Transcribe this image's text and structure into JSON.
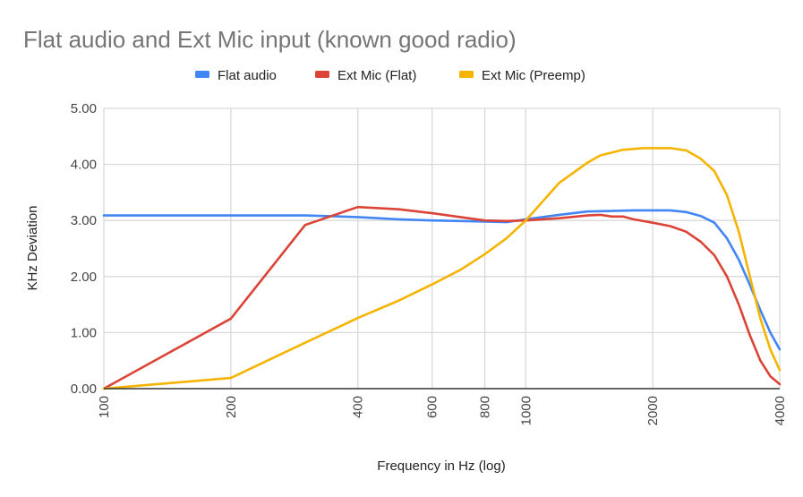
{
  "chart_data": {
    "type": "line",
    "title": "Flat audio and Ext Mic input (known good radio)",
    "xlabel": "Frequency in Hz (log)",
    "ylabel": "KHz Deviation",
    "xscale": "log",
    "xlim": [
      100,
      4000
    ],
    "ylim": [
      0,
      5
    ],
    "x_ticks": [
      100,
      200,
      400,
      600,
      800,
      1000,
      2000,
      4000
    ],
    "x_tick_labels": [
      "100",
      "200",
      "400",
      "600",
      "800",
      "1000",
      "2000",
      "4000"
    ],
    "y_ticks": [
      0,
      1,
      2,
      3,
      4,
      5
    ],
    "y_tick_labels": [
      "0.00",
      "1.00",
      "2.00",
      "3.00",
      "4.00",
      "5.00"
    ],
    "grid": true,
    "legend_position": "top",
    "series": [
      {
        "name": "Flat audio",
        "color": "#4285f4",
        "points": [
          [
            100,
            3.09
          ],
          [
            200,
            3.09
          ],
          [
            300,
            3.09
          ],
          [
            400,
            3.06
          ],
          [
            500,
            3.02
          ],
          [
            600,
            3.0
          ],
          [
            700,
            2.99
          ],
          [
            800,
            2.98
          ],
          [
            900,
            2.97
          ],
          [
            1000,
            3.02
          ],
          [
            1200,
            3.1
          ],
          [
            1400,
            3.16
          ],
          [
            1600,
            3.17
          ],
          [
            1800,
            3.18
          ],
          [
            2000,
            3.18
          ],
          [
            2200,
            3.18
          ],
          [
            2400,
            3.15
          ],
          [
            2600,
            3.08
          ],
          [
            2800,
            2.96
          ],
          [
            3000,
            2.68
          ],
          [
            3200,
            2.3
          ],
          [
            3400,
            1.85
          ],
          [
            3600,
            1.4
          ],
          [
            3800,
            1.0
          ],
          [
            4000,
            0.7
          ]
        ]
      },
      {
        "name": "Ext Mic (Flat)",
        "color": "#db4437",
        "points": [
          [
            100,
            0.0
          ],
          [
            200,
            1.25
          ],
          [
            300,
            2.92
          ],
          [
            400,
            3.24
          ],
          [
            500,
            3.2
          ],
          [
            600,
            3.13
          ],
          [
            700,
            3.06
          ],
          [
            800,
            3.0
          ],
          [
            900,
            2.99
          ],
          [
            1000,
            3.0
          ],
          [
            1200,
            3.04
          ],
          [
            1400,
            3.09
          ],
          [
            1500,
            3.1
          ],
          [
            1600,
            3.07
          ],
          [
            1700,
            3.07
          ],
          [
            1800,
            3.02
          ],
          [
            2000,
            2.96
          ],
          [
            2200,
            2.9
          ],
          [
            2400,
            2.8
          ],
          [
            2600,
            2.62
          ],
          [
            2800,
            2.38
          ],
          [
            3000,
            2.0
          ],
          [
            3200,
            1.5
          ],
          [
            3400,
            0.95
          ],
          [
            3600,
            0.5
          ],
          [
            3800,
            0.22
          ],
          [
            4000,
            0.08
          ]
        ]
      },
      {
        "name": "Ext Mic (Preemp)",
        "color": "#f4b400",
        "points": [
          [
            100,
            0.0
          ],
          [
            200,
            0.19
          ],
          [
            300,
            0.82
          ],
          [
            400,
            1.26
          ],
          [
            500,
            1.57
          ],
          [
            600,
            1.86
          ],
          [
            700,
            2.12
          ],
          [
            800,
            2.4
          ],
          [
            900,
            2.68
          ],
          [
            1000,
            3.0
          ],
          [
            1200,
            3.67
          ],
          [
            1400,
            4.03
          ],
          [
            1500,
            4.16
          ],
          [
            1700,
            4.26
          ],
          [
            1900,
            4.29
          ],
          [
            2000,
            4.29
          ],
          [
            2200,
            4.29
          ],
          [
            2400,
            4.25
          ],
          [
            2600,
            4.1
          ],
          [
            2800,
            3.88
          ],
          [
            3000,
            3.45
          ],
          [
            3200,
            2.8
          ],
          [
            3400,
            2.0
          ],
          [
            3600,
            1.25
          ],
          [
            3800,
            0.7
          ],
          [
            4000,
            0.33
          ]
        ]
      }
    ]
  }
}
